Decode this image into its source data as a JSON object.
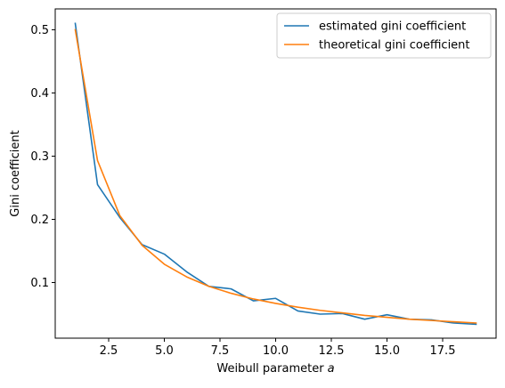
{
  "chart_data": {
    "type": "line",
    "title": "",
    "xlabel": "Weibull parameter ",
    "xlabel_symbol": "a",
    "ylabel": "Gini coefficient",
    "xlim": [
      0.1,
      19.9
    ],
    "ylim": [
      0.012,
      0.533
    ],
    "x_ticks": [
      2.5,
      5.0,
      7.5,
      10.0,
      12.5,
      15.0,
      17.5
    ],
    "x_tick_labels": [
      "2.5",
      "5.0",
      "7.5",
      "10.0",
      "12.5",
      "15.0",
      "17.5"
    ],
    "y_ticks": [
      0.1,
      0.2,
      0.3,
      0.4,
      0.5
    ],
    "y_tick_labels": [
      "0.1",
      "0.2",
      "0.3",
      "0.4",
      "0.5"
    ],
    "grid": false,
    "legend_position": "top-right",
    "x": [
      1,
      2,
      3,
      4,
      5,
      6,
      7,
      8,
      9,
      10,
      11,
      12,
      13,
      14,
      15,
      16,
      17,
      18,
      19
    ],
    "series": [
      {
        "name": "estimated gini coefficient",
        "color": "#1f77b4",
        "values": [
          0.51,
          0.255,
          0.203,
          0.16,
          0.145,
          0.117,
          0.094,
          0.09,
          0.071,
          0.075,
          0.055,
          0.05,
          0.051,
          0.042,
          0.049,
          0.042,
          0.041,
          0.036,
          0.034
        ]
      },
      {
        "name": "theoretical gini coefficient",
        "color": "#ff7f0e",
        "values": [
          0.5,
          0.293,
          0.206,
          0.159,
          0.129,
          0.109,
          0.094,
          0.083,
          0.074,
          0.067,
          0.061,
          0.056,
          0.052,
          0.048,
          0.045,
          0.042,
          0.04,
          0.038,
          0.036
        ]
      }
    ]
  }
}
